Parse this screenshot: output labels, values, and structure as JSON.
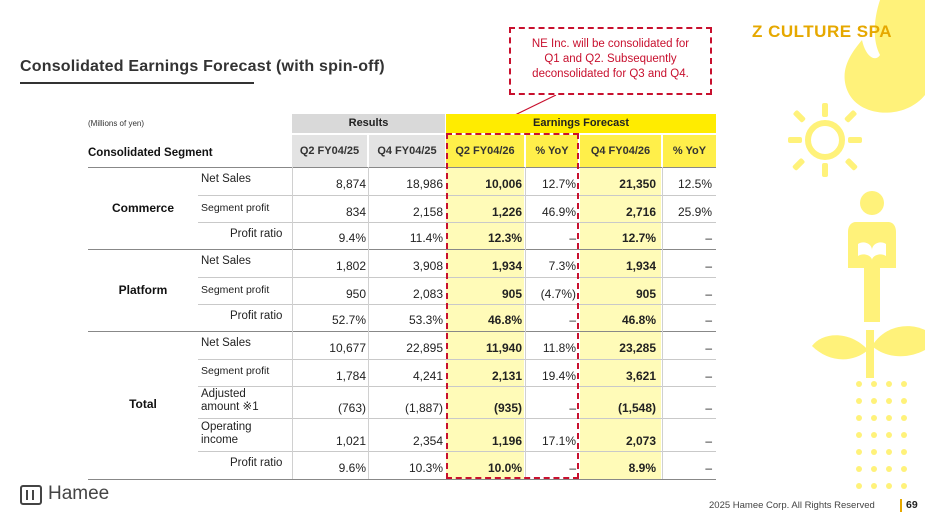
{
  "title": "Consolidated Earnings Forecast (with spin-off)",
  "callout": [
    "NE Inc. will be consolidated for",
    "Q1 and Q2. Subsequently",
    "deconsolidated for Q3 and Q4."
  ],
  "brand_badge": "Z CULTURE SPA",
  "table": {
    "units": "(Millions of yen)",
    "segment_header": "Consolidated Segment",
    "group_headers": {
      "results": "Results",
      "forecast": "Earnings Forecast"
    },
    "columns": [
      "Q2 FY04/25",
      "Q4 FY04/25",
      "Q2 FY04/26",
      "% YoY",
      "Q4 FY04/26",
      "% YoY"
    ],
    "groups": [
      {
        "name": "Commerce",
        "rows": [
          {
            "label": "Net Sales",
            "values": [
              "8,874",
              "18,986",
              "10,006",
              "12.7%",
              "21,350",
              "12.5%"
            ]
          },
          {
            "label": "Segment profit",
            "values": [
              "834",
              "2,158",
              "1,226",
              "46.9%",
              "2,716",
              "25.9%"
            ]
          },
          {
            "label": "Profit ratio",
            "values": [
              "9.4%",
              "11.4%",
              "12.3%",
              "–",
              "12.7%",
              "–"
            ]
          }
        ]
      },
      {
        "name": "Platform",
        "rows": [
          {
            "label": "Net Sales",
            "values": [
              "1,802",
              "3,908",
              "1,934",
              "7.3%",
              "1,934",
              "–"
            ]
          },
          {
            "label": "Segment profit",
            "values": [
              "950",
              "2,083",
              "905",
              "(4.7%)",
              "905",
              "–"
            ]
          },
          {
            "label": "Profit ratio",
            "values": [
              "52.7%",
              "53.3%",
              "46.8%",
              "–",
              "46.8%",
              "–"
            ]
          }
        ]
      },
      {
        "name": "Total",
        "rows": [
          {
            "label": "Net Sales",
            "values": [
              "10,677",
              "22,895",
              "11,940",
              "11.8%",
              "23,285",
              "–"
            ]
          },
          {
            "label": "Segment profit",
            "values": [
              "1,784",
              "4,241",
              "2,131",
              "19.4%",
              "3,621",
              "–"
            ]
          },
          {
            "label_line1": "Adjusted",
            "label_line2": "amount ※1",
            "values": [
              "(763)",
              "(1,887)",
              "(935)",
              "–",
              "(1,548)",
              "–"
            ]
          },
          {
            "label_line1": "Operating",
            "label_line2": "income",
            "values": [
              "1,021",
              "2,354",
              "1,196",
              "17.1%",
              "2,073",
              "–"
            ]
          },
          {
            "label": "Profit ratio",
            "values": [
              "9.6%",
              "10.3%",
              "10.0%",
              "–",
              "8.9%",
              "–"
            ]
          }
        ]
      }
    ]
  },
  "footer": {
    "logo": "Hamee",
    "copyright": "2025 Hamee Corp. All Rights Reserved",
    "page_number": "69"
  },
  "colors": {
    "accent_red": "#c8102e",
    "forecast_yellow": "#ffec00",
    "forecast_band": "#fffbb8",
    "deco_yellow": "#fff27a",
    "brand_gold": "#e6a800"
  }
}
